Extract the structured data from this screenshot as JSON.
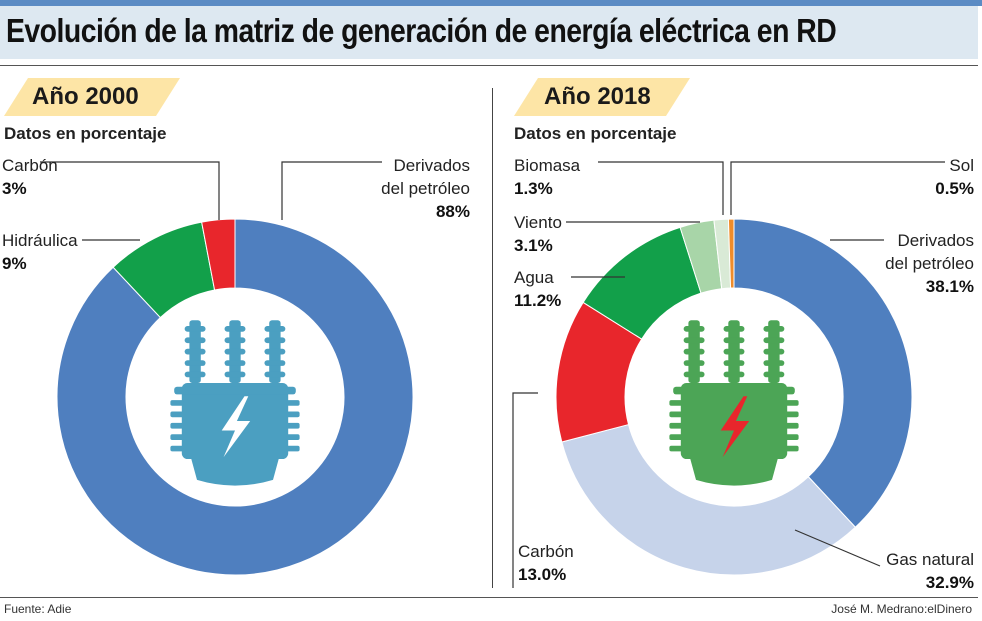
{
  "header": {
    "title": "Evolución de la matriz de generación de energía eléctrica en RD"
  },
  "subtitle": "Datos en porcentaje",
  "chart_data": [
    {
      "type": "pie",
      "variant": "donut",
      "title": "Año 2000",
      "unit": "%",
      "slices": [
        {
          "name": "Derivados del petróleo",
          "name_lines": [
            "Derivados",
            "del petróleo"
          ],
          "value": 88,
          "display": "88%",
          "color": "#4f7fbf"
        },
        {
          "name": "Hidráulica",
          "name_lines": [
            "Hidráulica"
          ],
          "value": 9,
          "display": "9%",
          "color": "#12a04a"
        },
        {
          "name": "Carbón",
          "name_lines": [
            "Carbón"
          ],
          "value": 3,
          "display": "3%",
          "color": "#e8262c"
        }
      ],
      "center_icon": {
        "name": "transformer-icon",
        "body_color": "#4b9fc1",
        "bolt_color": "#ffffff"
      }
    },
    {
      "type": "pie",
      "variant": "donut",
      "title": "Año 2018",
      "unit": "%",
      "slices": [
        {
          "name": "Derivados del petróleo",
          "name_lines": [
            "Derivados",
            "del petróleo"
          ],
          "value": 38.1,
          "display": "38.1%",
          "color": "#4f7fbf"
        },
        {
          "name": "Gas natural",
          "name_lines": [
            "Gas natural"
          ],
          "value": 32.9,
          "display": "32.9%",
          "color": "#c6d3ea"
        },
        {
          "name": "Carbón",
          "name_lines": [
            "Carbón"
          ],
          "value": 13.0,
          "display": "13.0%",
          "color": "#e8262c"
        },
        {
          "name": "Agua",
          "name_lines": [
            "Agua"
          ],
          "value": 11.2,
          "display": "11.2%",
          "color": "#12a04a"
        },
        {
          "name": "Viento",
          "name_lines": [
            "Viento"
          ],
          "value": 3.1,
          "display": "3.1%",
          "color": "#a8d5a8"
        },
        {
          "name": "Biomasa",
          "name_lines": [
            "Biomasa"
          ],
          "value": 1.3,
          "display": "1.3%",
          "color": "#d9ead6"
        },
        {
          "name": "Sol",
          "name_lines": [
            "Sol"
          ],
          "value": 0.5,
          "display": "0.5%",
          "color": "#f08c2a"
        }
      ],
      "center_icon": {
        "name": "transformer-icon",
        "body_color": "#4ca556",
        "bolt_color": "#e8262c"
      }
    }
  ],
  "footer": {
    "source": "Fuente: Adie",
    "credit": "José M. Medrano:elDinero"
  }
}
